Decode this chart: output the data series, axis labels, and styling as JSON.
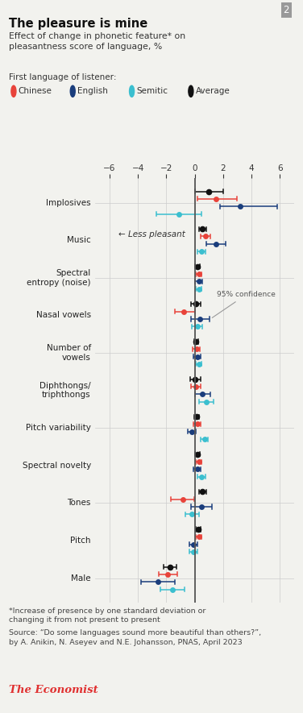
{
  "title": "The pleasure is mine",
  "subtitle": "Effect of change in phonetic feature* on\npleasantness score of language, %",
  "legend_label": "First language of listener:",
  "categories": [
    "Implosives",
    "Music",
    "Spectral\nentropy (noise)",
    "Nasal vowels",
    "Number of\nvowels",
    "Diphthongs/\ntriphthongs",
    "Pitch variability",
    "Spectral novelty",
    "Tones",
    "Pitch",
    "Male"
  ],
  "colors": {
    "chinese": "#e8433a",
    "english": "#1a3d7c",
    "semitic": "#3bbfcf",
    "average": "#111111"
  },
  "data": {
    "average": {
      "values": [
        1.0,
        0.55,
        0.22,
        0.1,
        0.1,
        0.05,
        0.12,
        0.2,
        0.55,
        0.25,
        -1.75
      ],
      "lo": [
        0.0,
        0.3,
        0.05,
        -0.25,
        -0.05,
        -0.3,
        -0.05,
        0.05,
        0.3,
        0.1,
        -2.2
      ],
      "hi": [
        2.0,
        0.8,
        0.38,
        0.45,
        0.25,
        0.4,
        0.28,
        0.35,
        0.8,
        0.4,
        -1.3
      ]
    },
    "chinese": {
      "values": [
        1.5,
        0.75,
        0.28,
        -0.75,
        0.12,
        0.1,
        0.18,
        0.28,
        -0.85,
        0.28,
        -1.9
      ],
      "lo": [
        0.2,
        0.42,
        0.1,
        -1.4,
        -0.15,
        -0.25,
        -0.08,
        0.1,
        -1.7,
        0.1,
        -2.55
      ],
      "hi": [
        3.0,
        1.1,
        0.46,
        0.0,
        0.38,
        0.45,
        0.44,
        0.46,
        -0.05,
        0.46,
        -1.25
      ]
    },
    "english": {
      "values": [
        3.2,
        1.5,
        0.28,
        0.38,
        0.18,
        0.55,
        -0.18,
        0.18,
        0.48,
        -0.08,
        -2.6
      ],
      "lo": [
        1.8,
        0.8,
        0.02,
        -0.28,
        -0.08,
        0.02,
        -0.48,
        -0.08,
        -0.25,
        -0.35,
        -3.8
      ],
      "hi": [
        5.8,
        2.2,
        0.55,
        1.05,
        0.44,
        1.1,
        0.1,
        0.44,
        1.2,
        0.18,
        -1.4
      ]
    },
    "semitic": {
      "values": [
        -1.1,
        0.48,
        0.28,
        0.18,
        0.28,
        0.82,
        0.68,
        0.48,
        -0.18,
        -0.08,
        -1.55
      ],
      "lo": [
        -2.7,
        0.2,
        0.1,
        -0.18,
        0.1,
        0.3,
        0.4,
        0.2,
        -0.65,
        -0.38,
        -2.4
      ],
      "hi": [
        0.5,
        0.76,
        0.46,
        0.54,
        0.46,
        1.34,
        0.96,
        0.76,
        0.28,
        0.22,
        -0.7
      ]
    }
  },
  "xlim": [
    -7,
    7
  ],
  "xticks": [
    -6,
    -4,
    -2,
    0,
    2,
    4,
    6
  ],
  "footnote1": "*Increase of presence by one standard deviation or\nchanging it from not present to present",
  "footnote2": "Source: “Do some languages sound more beautiful than others?”,\nby A. Anikin, N. Aseyev and N.E. Johansson, PNAS, April 2023",
  "branding": "The Economist",
  "less_pleasant_text": "← Less pleasant",
  "background_color": "#f2f2ee"
}
